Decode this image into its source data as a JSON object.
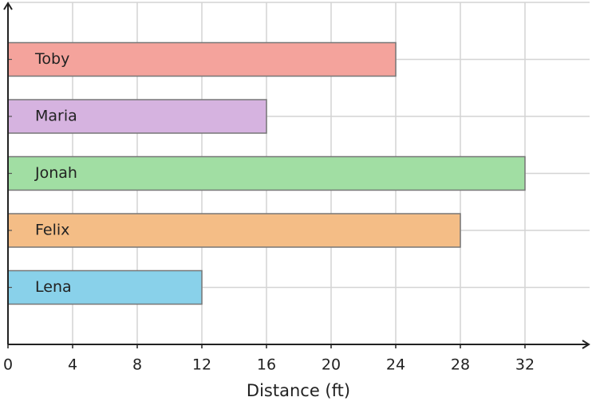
{
  "chart_data": {
    "type": "bar",
    "orientation": "horizontal",
    "x_label": "Distance (ft)",
    "categories": [
      "Toby",
      "Maria",
      "Jonah",
      "Felix",
      "Lena"
    ],
    "values": [
      24,
      16,
      32,
      28,
      12
    ],
    "colors": [
      "#f4a39c",
      "#d6b3e0",
      "#a1dea3",
      "#f4bd86",
      "#89d1ea"
    ],
    "xlim": [
      0,
      36
    ],
    "xticks": [
      0,
      4,
      8,
      12,
      16,
      20,
      24,
      28,
      32
    ],
    "grid": true
  }
}
